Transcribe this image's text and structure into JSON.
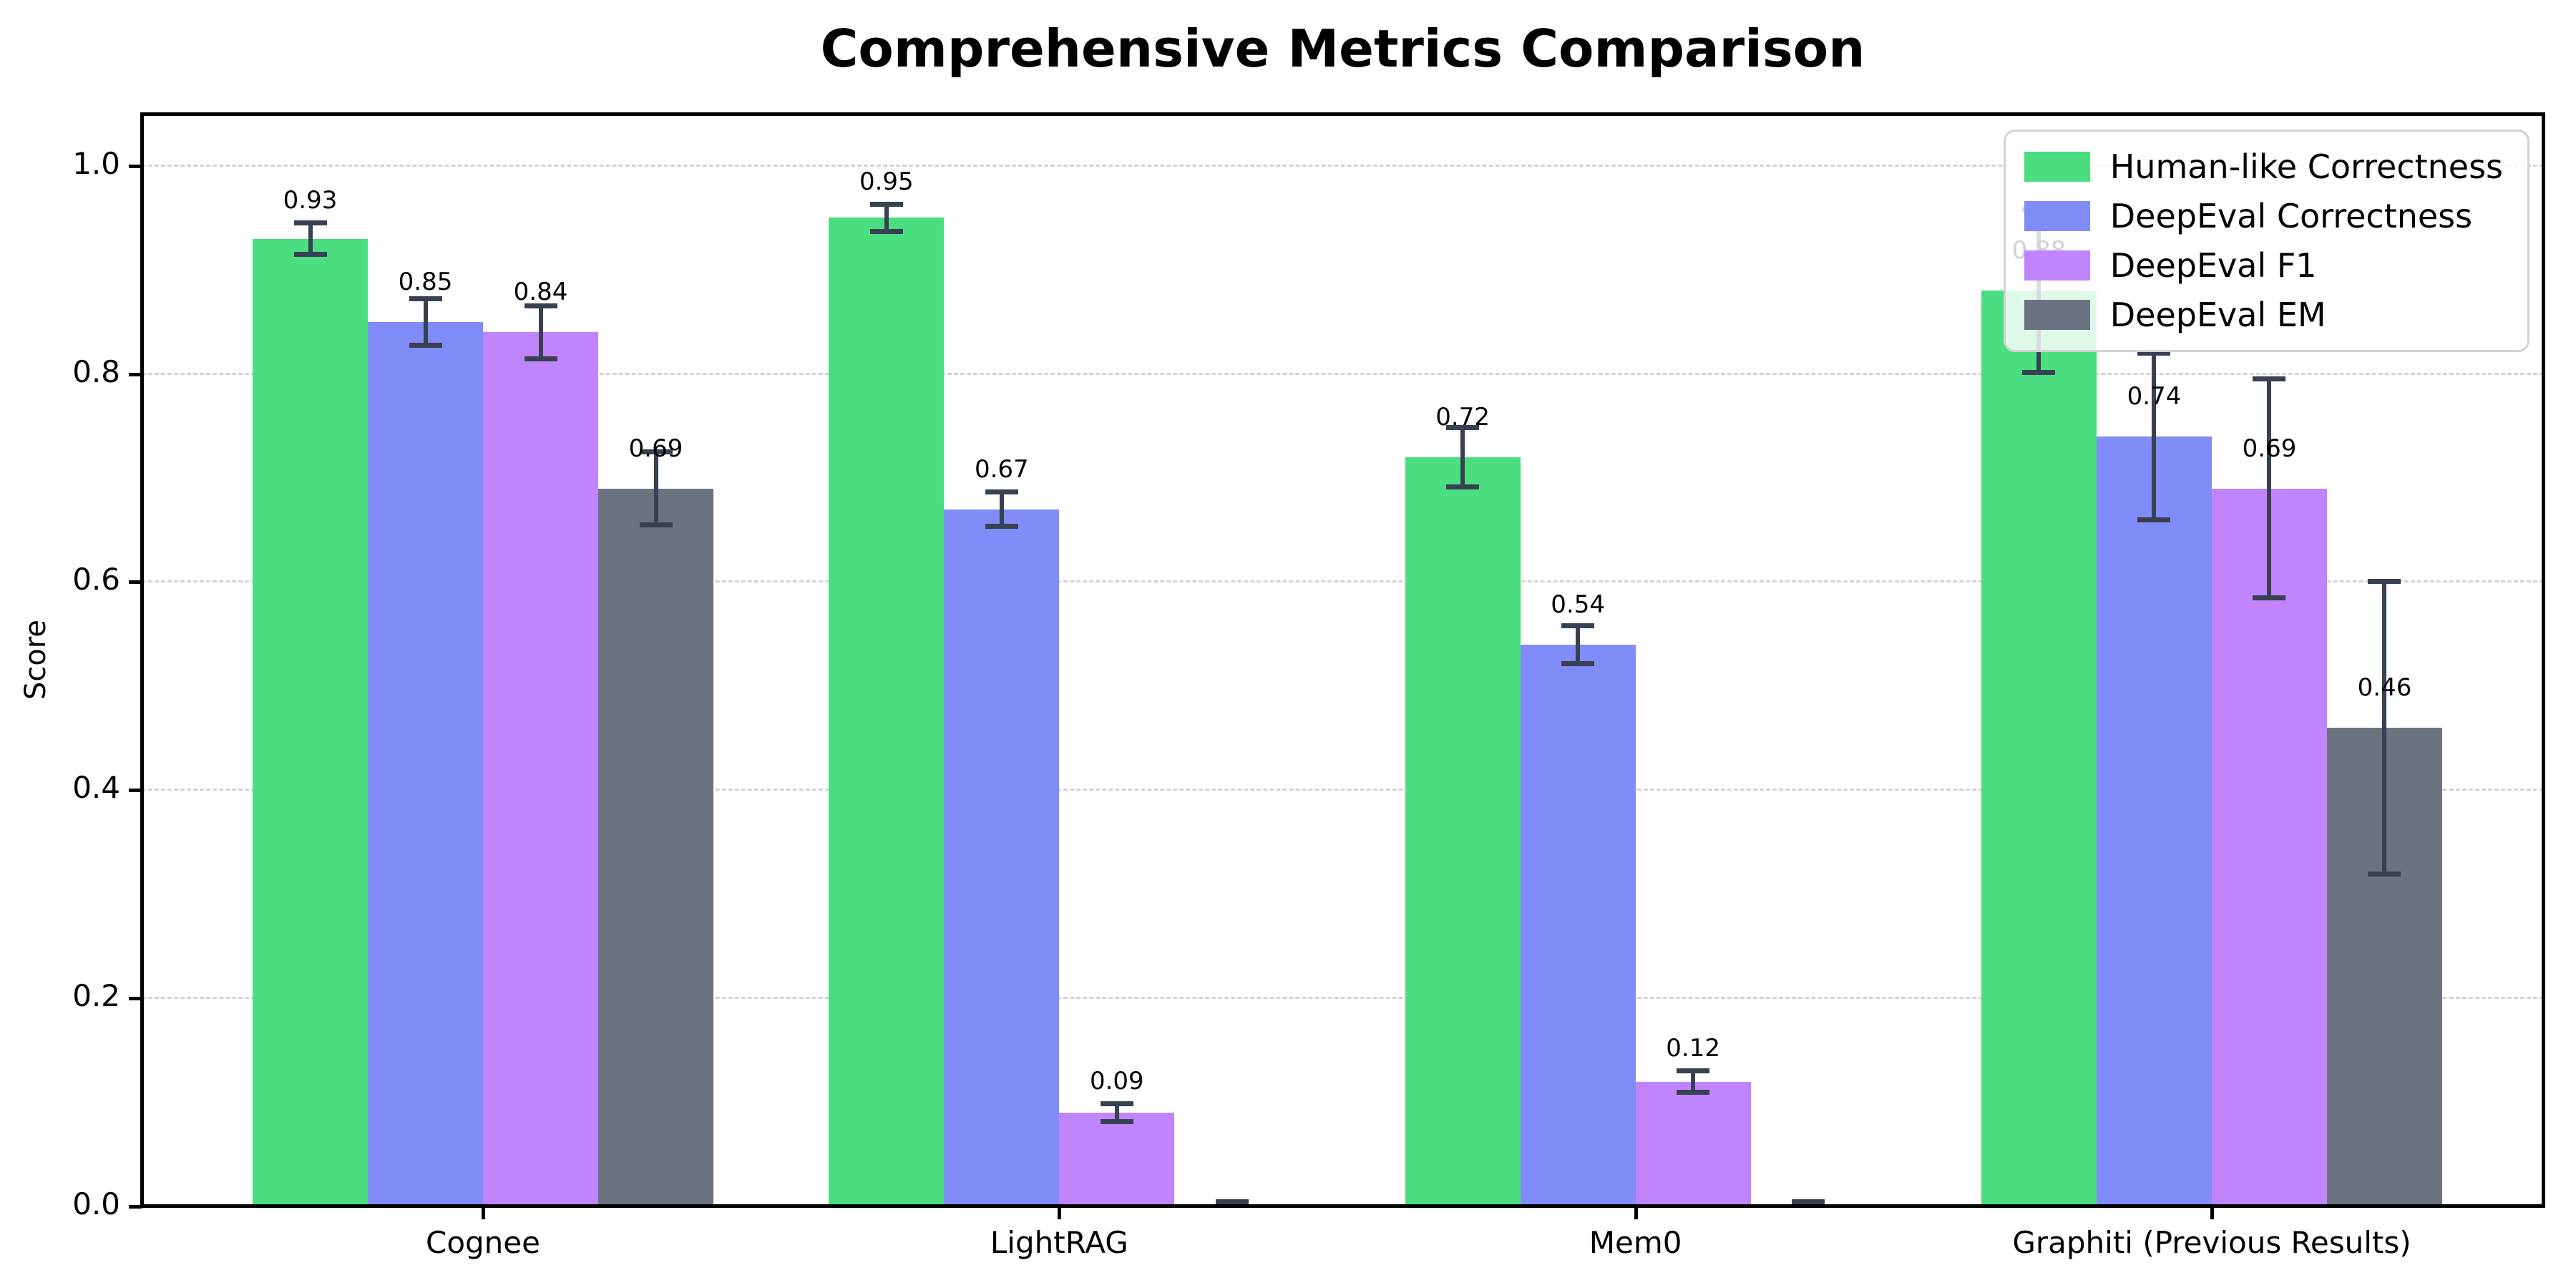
{
  "chart_data": {
    "type": "bar",
    "title": "Comprehensive Metrics Comparison",
    "ylabel": "Score",
    "xlabel": "",
    "categories": [
      "Cognee",
      "LightRAG",
      "Mem0",
      "Graphiti (Previous Results)"
    ],
    "ylim": [
      0,
      1.05
    ],
    "yticks": [
      {
        "value": 0.0,
        "label": "0.0"
      },
      {
        "value": 0.2,
        "label": "0.2"
      },
      {
        "value": 0.4,
        "label": "0.4"
      },
      {
        "value": 0.6,
        "label": "0.6"
      },
      {
        "value": 0.8,
        "label": "0.8"
      },
      {
        "value": 1.0,
        "label": "1.0"
      }
    ],
    "grid": "horizontal-dashed",
    "legend_position": "upper-right",
    "error_bar_color": "#374151",
    "series": [
      {
        "name": "Human-like Correctness",
        "color": "#4ade80",
        "values": [
          0.93,
          0.95,
          0.72,
          0.88
        ],
        "errors": [
          0.015,
          0.013,
          0.028,
          0.078
        ],
        "bar_labels": [
          "0.93",
          "0.95",
          "0.72",
          "0.88"
        ]
      },
      {
        "name": "DeepEval Correctness",
        "color": "#818cf8",
        "values": [
          0.85,
          0.67,
          0.54,
          0.74
        ],
        "errors": [
          0.022,
          0.016,
          0.018,
          0.08
        ],
        "bar_labels": [
          "0.85",
          "0.67",
          "0.54",
          "0.74"
        ]
      },
      {
        "name": "DeepEval F1",
        "color": "#c084fc",
        "values": [
          0.84,
          0.09,
          0.12,
          0.69
        ],
        "errors": [
          0.025,
          0.008,
          0.01,
          0.105
        ],
        "bar_labels": [
          "0.84",
          "0.09",
          "0.12",
          "0.69"
        ]
      },
      {
        "name": "DeepEval EM",
        "color": "#6b7280",
        "values": [
          0.69,
          0.0,
          0.0,
          0.46
        ],
        "errors": [
          0.035,
          0.004,
          0.004,
          0.14
        ],
        "bar_labels": [
          "0.69",
          "",
          "",
          "0.46"
        ]
      }
    ]
  }
}
